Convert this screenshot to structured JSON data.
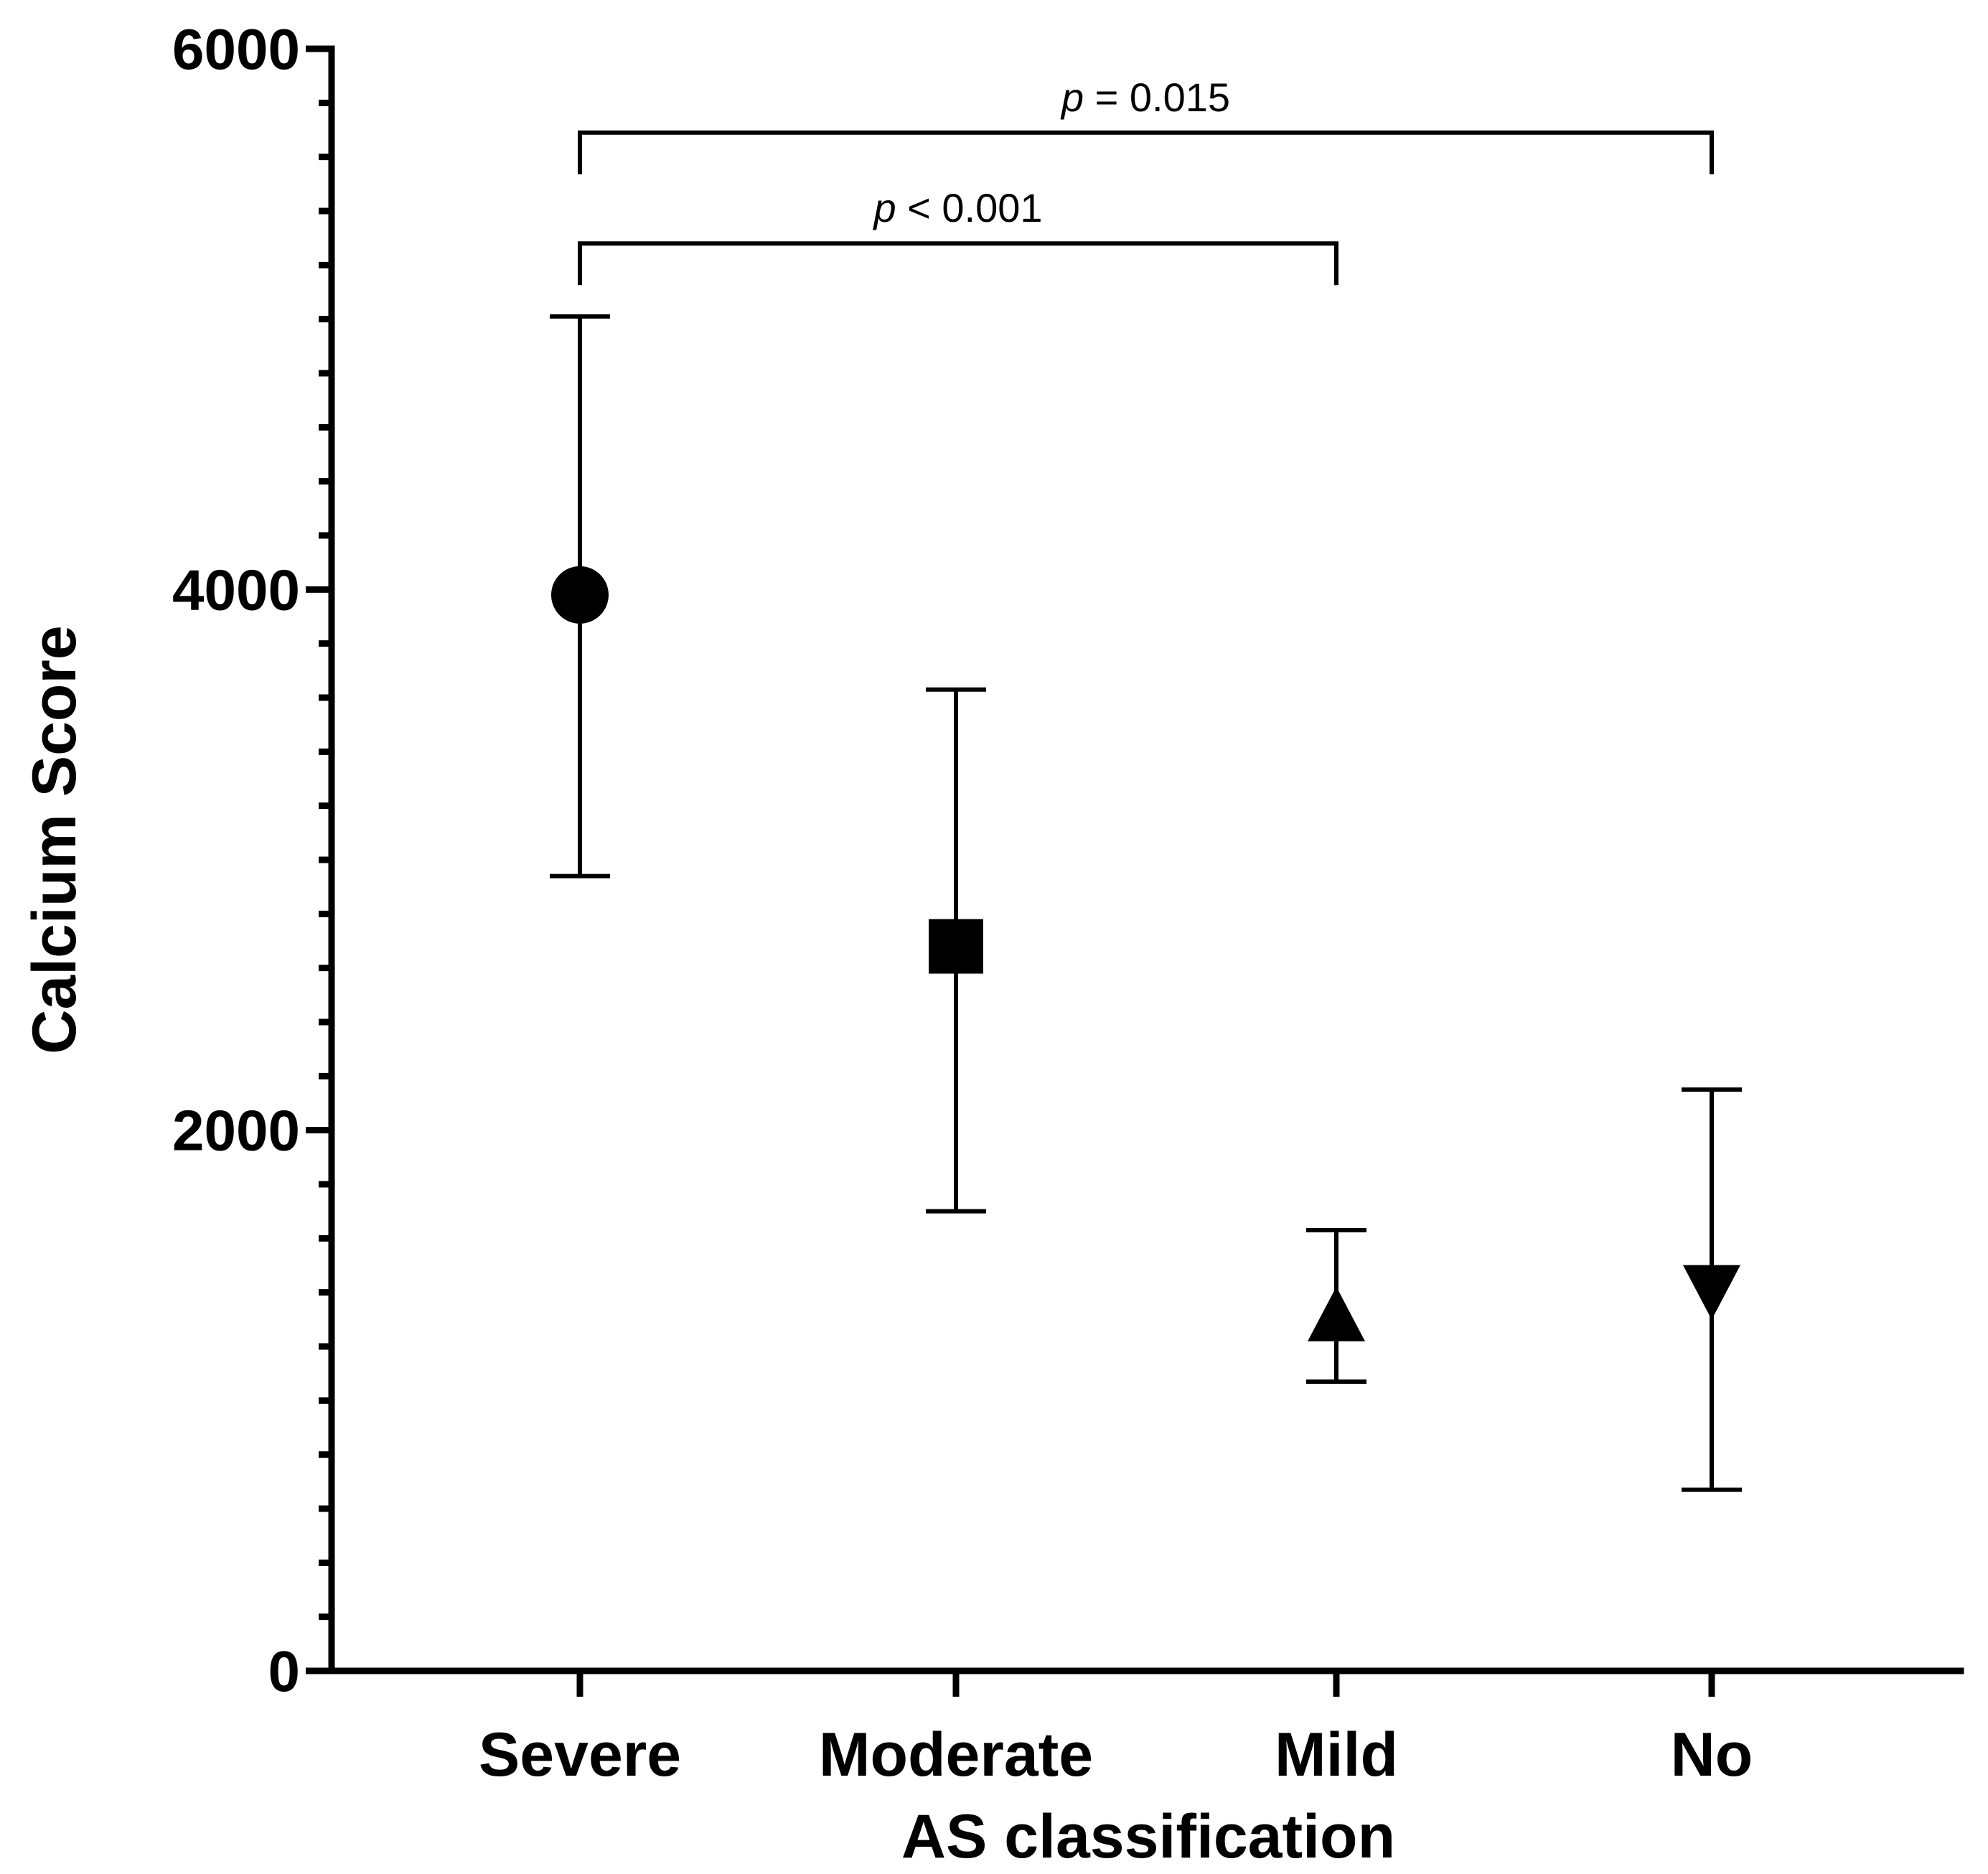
{
  "chart_data": {
    "type": "scatter",
    "title": "",
    "xlabel": "AS classification",
    "ylabel": "Calcium Score",
    "ylim": [
      0,
      6000
    ],
    "yticks": [
      0,
      2000,
      4000,
      6000
    ],
    "y_minor_step": 200,
    "categories": [
      "Severe",
      "Moderate",
      "Mild",
      "No"
    ],
    "points": [
      {
        "category": "Severe",
        "mean": 3980,
        "err_low": 2940,
        "err_high": 5010,
        "marker": "circle"
      },
      {
        "category": "Moderate",
        "mean": 2680,
        "err_low": 1700,
        "err_high": 3630,
        "marker": "square"
      },
      {
        "category": "Mild",
        "mean": 1320,
        "err_low": 1070,
        "err_high": 1630,
        "marker": "triangle-up"
      },
      {
        "category": "No",
        "mean": 1400,
        "err_low": 670,
        "err_high": 2150,
        "marker": "triangle-down"
      }
    ],
    "comparisons": [
      {
        "from": "Severe",
        "to": "No",
        "level": 5690,
        "label_p": "p",
        "label_rest": " = 0.015"
      },
      {
        "from": "Severe",
        "to": "Mild",
        "level": 5280,
        "label_p": "p",
        "label_rest": " < 0.001"
      }
    ],
    "grid": false,
    "legend": "none"
  }
}
